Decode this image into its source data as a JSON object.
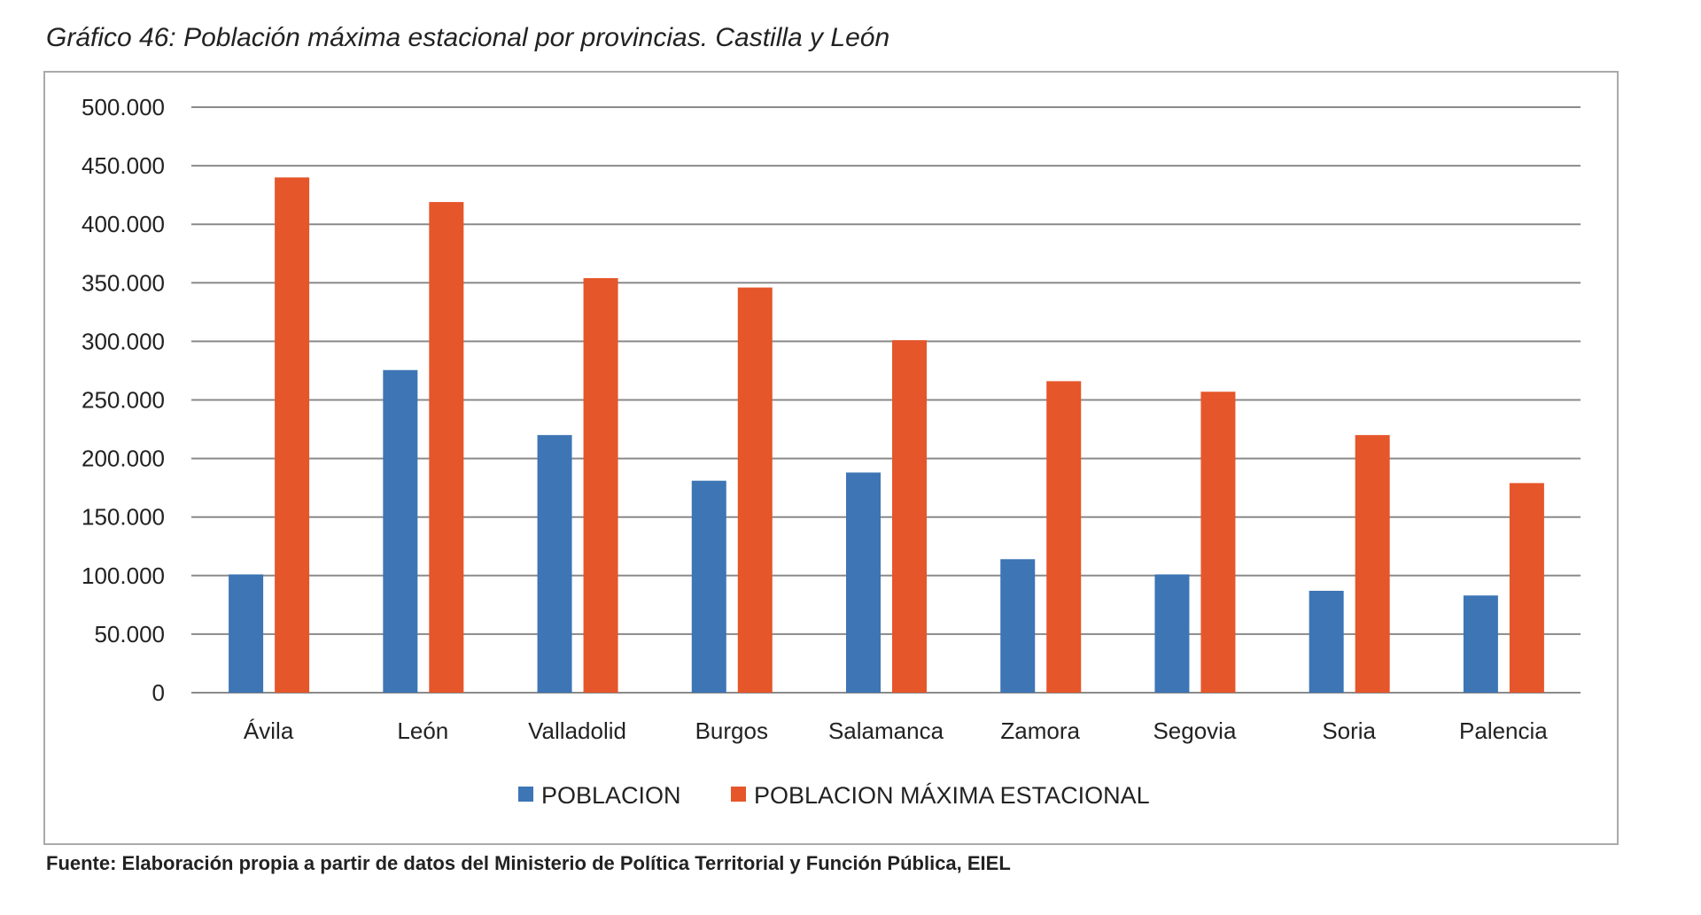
{
  "title": "Gráfico 46: Población máxima estacional por provincias. Castilla y León",
  "source": "Fuente: Elaboración propia a partir de datos del Ministerio de Política Territorial y Función Pública, EIEL",
  "chart_data": {
    "type": "bar",
    "categories": [
      "Ávila",
      "León",
      "Valladolid",
      "Burgos",
      "Salamanca",
      "Zamora",
      "Segovia",
      "Soria",
      "Palencia"
    ],
    "series": [
      {
        "name": "POBLACION",
        "color": "#3d75b5",
        "values": [
          101000,
          275500,
          220000,
          181000,
          188000,
          114000,
          101000,
          87000,
          83000
        ]
      },
      {
        "name": "POBLACION MÁXIMA ESTACIONAL",
        "color": "#e5562a",
        "values": [
          440000,
          419000,
          354000,
          346000,
          301000,
          266000,
          257000,
          220000,
          179000
        ]
      }
    ],
    "ylim": [
      0,
      500000
    ],
    "yticks": [
      "0",
      "50.000",
      "100.000",
      "150.000",
      "200.000",
      "250.000",
      "300.000",
      "350.000",
      "400.000",
      "450.000",
      "500.000"
    ],
    "grid": true,
    "legend": "bottom"
  }
}
